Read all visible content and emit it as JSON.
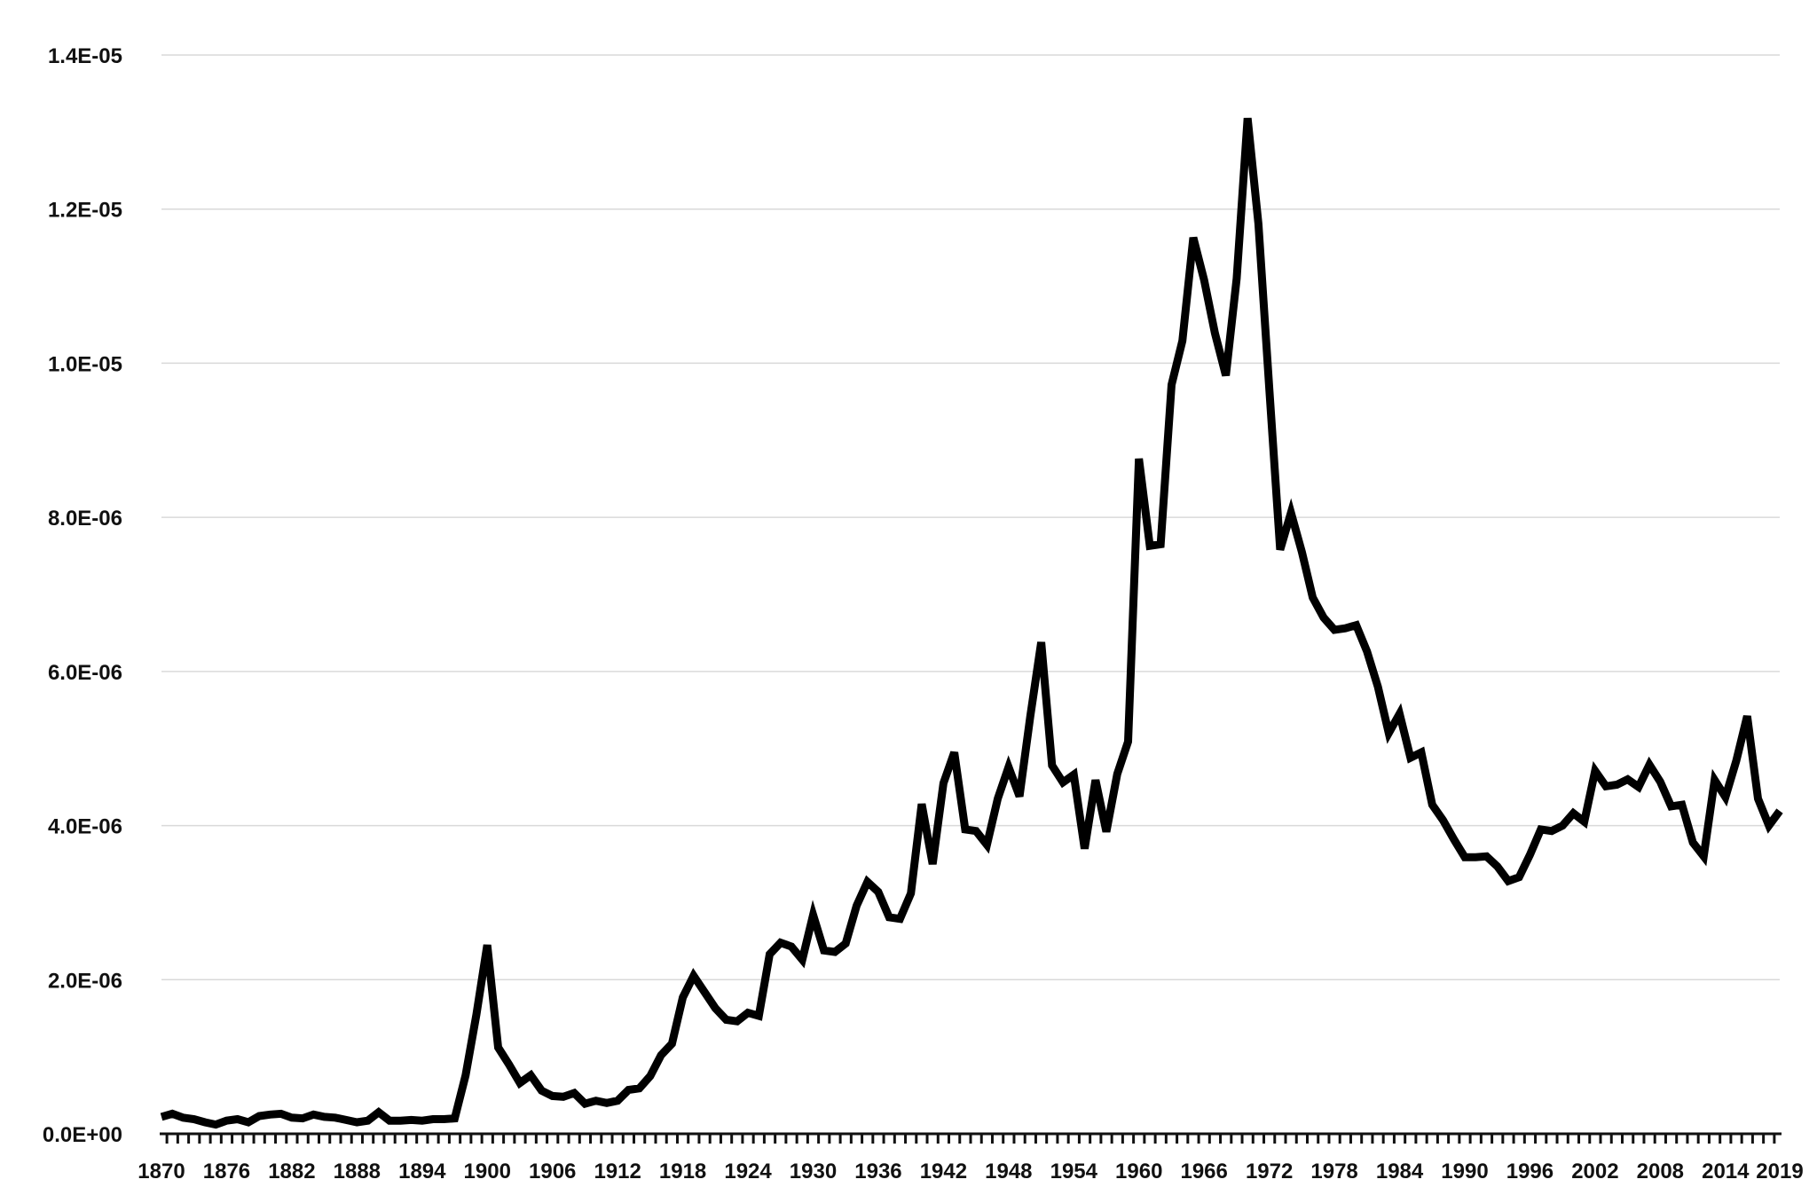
{
  "chart_data": {
    "type": "line",
    "title": "",
    "xlabel": "",
    "ylabel": "",
    "xlim": [
      1870,
      2019
    ],
    "ylim": [
      0,
      1.4e-05
    ],
    "grid": true,
    "legend": "none",
    "colors": {
      "line": "#000000",
      "grid": "#d9d9d9",
      "text": "#111111"
    },
    "y_ticks": [
      {
        "value": 0,
        "label": "0.0E+00"
      },
      {
        "value": 2e-06,
        "label": "2.0E-06"
      },
      {
        "value": 4e-06,
        "label": "4.0E-06"
      },
      {
        "value": 6e-06,
        "label": "6.0E-06"
      },
      {
        "value": 8e-06,
        "label": "8.0E-06"
      },
      {
        "value": 1e-05,
        "label": "1.0E-05"
      },
      {
        "value": 1.2e-05,
        "label": "1.2E-05"
      },
      {
        "value": 1.4e-05,
        "label": "1.4E-05"
      }
    ],
    "x_tick_labels": [
      {
        "value": 1870,
        "label": "1870"
      },
      {
        "value": 1876,
        "label": "1876"
      },
      {
        "value": 1882,
        "label": "1882"
      },
      {
        "value": 1888,
        "label": "1888"
      },
      {
        "value": 1894,
        "label": "1894"
      },
      {
        "value": 1900,
        "label": "1900"
      },
      {
        "value": 1906,
        "label": "1906"
      },
      {
        "value": 1912,
        "label": "1912"
      },
      {
        "value": 1918,
        "label": "1918"
      },
      {
        "value": 1924,
        "label": "1924"
      },
      {
        "value": 1930,
        "label": "1930"
      },
      {
        "value": 1936,
        "label": "1936"
      },
      {
        "value": 1942,
        "label": "1942"
      },
      {
        "value": 1948,
        "label": "1948"
      },
      {
        "value": 1954,
        "label": "1954"
      },
      {
        "value": 1960,
        "label": "1960"
      },
      {
        "value": 1966,
        "label": "1966"
      },
      {
        "value": 1972,
        "label": "1972"
      },
      {
        "value": 1978,
        "label": "1978"
      },
      {
        "value": 1984,
        "label": "1984"
      },
      {
        "value": 1990,
        "label": "1990"
      },
      {
        "value": 1996,
        "label": "1996"
      },
      {
        "value": 2002,
        "label": "2002"
      },
      {
        "value": 2008,
        "label": "2008"
      },
      {
        "value": 2014,
        "label": "2014"
      },
      {
        "value": 2019,
        "label": "2019"
      }
    ],
    "series": [
      {
        "x": [
          1870,
          1871,
          1872,
          1873,
          1874,
          1875,
          1876,
          1877,
          1878,
          1879,
          1880,
          1881,
          1882,
          1883,
          1884,
          1885,
          1886,
          1887,
          1888,
          1889,
          1890,
          1891,
          1892,
          1893,
          1894,
          1895,
          1896,
          1897,
          1898,
          1899,
          1900,
          1901,
          1902,
          1903,
          1904,
          1905,
          1906,
          1907,
          1908,
          1909,
          1910,
          1911,
          1912,
          1913,
          1914,
          1915,
          1916,
          1917,
          1918,
          1919,
          1920,
          1921,
          1922,
          1923,
          1924,
          1925,
          1926,
          1927,
          1928,
          1929,
          1930,
          1931,
          1932,
          1933,
          1934,
          1935,
          1936,
          1937,
          1938,
          1939,
          1940,
          1941,
          1942,
          1943,
          1944,
          1945,
          1946,
          1947,
          1948,
          1949,
          1950,
          1951,
          1952,
          1953,
          1954,
          1955,
          1956,
          1957,
          1958,
          1959,
          1960,
          1961,
          1962,
          1963,
          1964,
          1965,
          1966,
          1967,
          1968,
          1969,
          1970,
          1971,
          1972,
          1973,
          1974,
          1975,
          1976,
          1977,
          1978,
          1979,
          1980,
          1981,
          1982,
          1983,
          1984,
          1985,
          1986,
          1987,
          1988,
          1989,
          1990,
          1991,
          1992,
          1993,
          1994,
          1995,
          1996,
          1997,
          1998,
          1999,
          2000,
          2001,
          2002,
          2003,
          2004,
          2005,
          2006,
          2007,
          2008,
          2009,
          2010,
          2011,
          2012,
          2013,
          2014,
          2015,
          2016,
          2017,
          2018,
          2019
        ],
        "values": [
          2.2e-07,
          2.6e-07,
          2.1e-07,
          1.9e-07,
          1.5e-07,
          1.2e-07,
          1.7e-07,
          1.9e-07,
          1.5e-07,
          2.3e-07,
          2.5e-07,
          2.6e-07,
          2.1e-07,
          2e-07,
          2.5e-07,
          2.2e-07,
          2.1e-07,
          1.8e-07,
          1.5e-07,
          1.7e-07,
          2.8e-07,
          1.7e-07,
          1.7e-07,
          1.8e-07,
          1.7e-07,
          1.9e-07,
          1.9e-07,
          2e-07,
          7.6e-07,
          1.55e-06,
          2.45e-06,
          1.12e-06,
          9e-07,
          6.6e-07,
          7.6e-07,
          5.6e-07,
          4.9e-07,
          4.8e-07,
          5.3e-07,
          3.9e-07,
          4.3e-07,
          4e-07,
          4.3e-07,
          5.7e-07,
          5.9e-07,
          7.5e-07,
          1.02e-06,
          1.17e-06,
          1.77e-06,
          2.05e-06,
          1.84e-06,
          1.63e-06,
          1.48e-06,
          1.46e-06,
          1.57e-06,
          1.53e-06,
          2.33e-06,
          2.48e-06,
          2.43e-06,
          2.26e-06,
          2.84e-06,
          2.38e-06,
          2.36e-06,
          2.47e-06,
          2.96e-06,
          3.27e-06,
          3.14e-06,
          2.81e-06,
          2.79e-06,
          3.12e-06,
          4.28e-06,
          3.5e-06,
          4.55e-06,
          4.95e-06,
          3.95e-06,
          3.93e-06,
          3.75e-06,
          4.35e-06,
          4.76e-06,
          4.38e-06,
          5.42e-06,
          6.38e-06,
          4.78e-06,
          4.56e-06,
          4.66e-06,
          3.7e-06,
          4.59e-06,
          3.92e-06,
          4.67e-06,
          5.09e-06,
          8.76e-06,
          7.63e-06,
          7.65e-06,
          9.72e-06,
          1.029e-05,
          1.163e-05,
          1.108e-05,
          1.039e-05,
          9.84e-06,
          1.11e-05,
          1.318e-05,
          1.181e-05,
          9.68e-06,
          7.58e-06,
          8.06e-06,
          7.55e-06,
          6.96e-06,
          6.7e-06,
          6.54e-06,
          6.56e-06,
          6.6e-06,
          6.26e-06,
          5.8e-06,
          5.2e-06,
          5.45e-06,
          4.88e-06,
          4.95e-06,
          4.27e-06,
          4.07e-06,
          3.82e-06,
          3.59e-06,
          3.59e-06,
          3.6e-06,
          3.47e-06,
          3.28e-06,
          3.33e-06,
          3.62e-06,
          3.95e-06,
          3.93e-06,
          4e-06,
          4.16e-06,
          4.05e-06,
          4.71e-06,
          4.51e-06,
          4.53e-06,
          4.6e-06,
          4.5e-06,
          4.79e-06,
          4.57e-06,
          4.25e-06,
          4.27e-06,
          3.78e-06,
          3.6e-06,
          4.59e-06,
          4.37e-06,
          4.84e-06,
          5.42e-06,
          4.35e-06,
          4e-06,
          4.19e-06
        ]
      }
    ]
  }
}
